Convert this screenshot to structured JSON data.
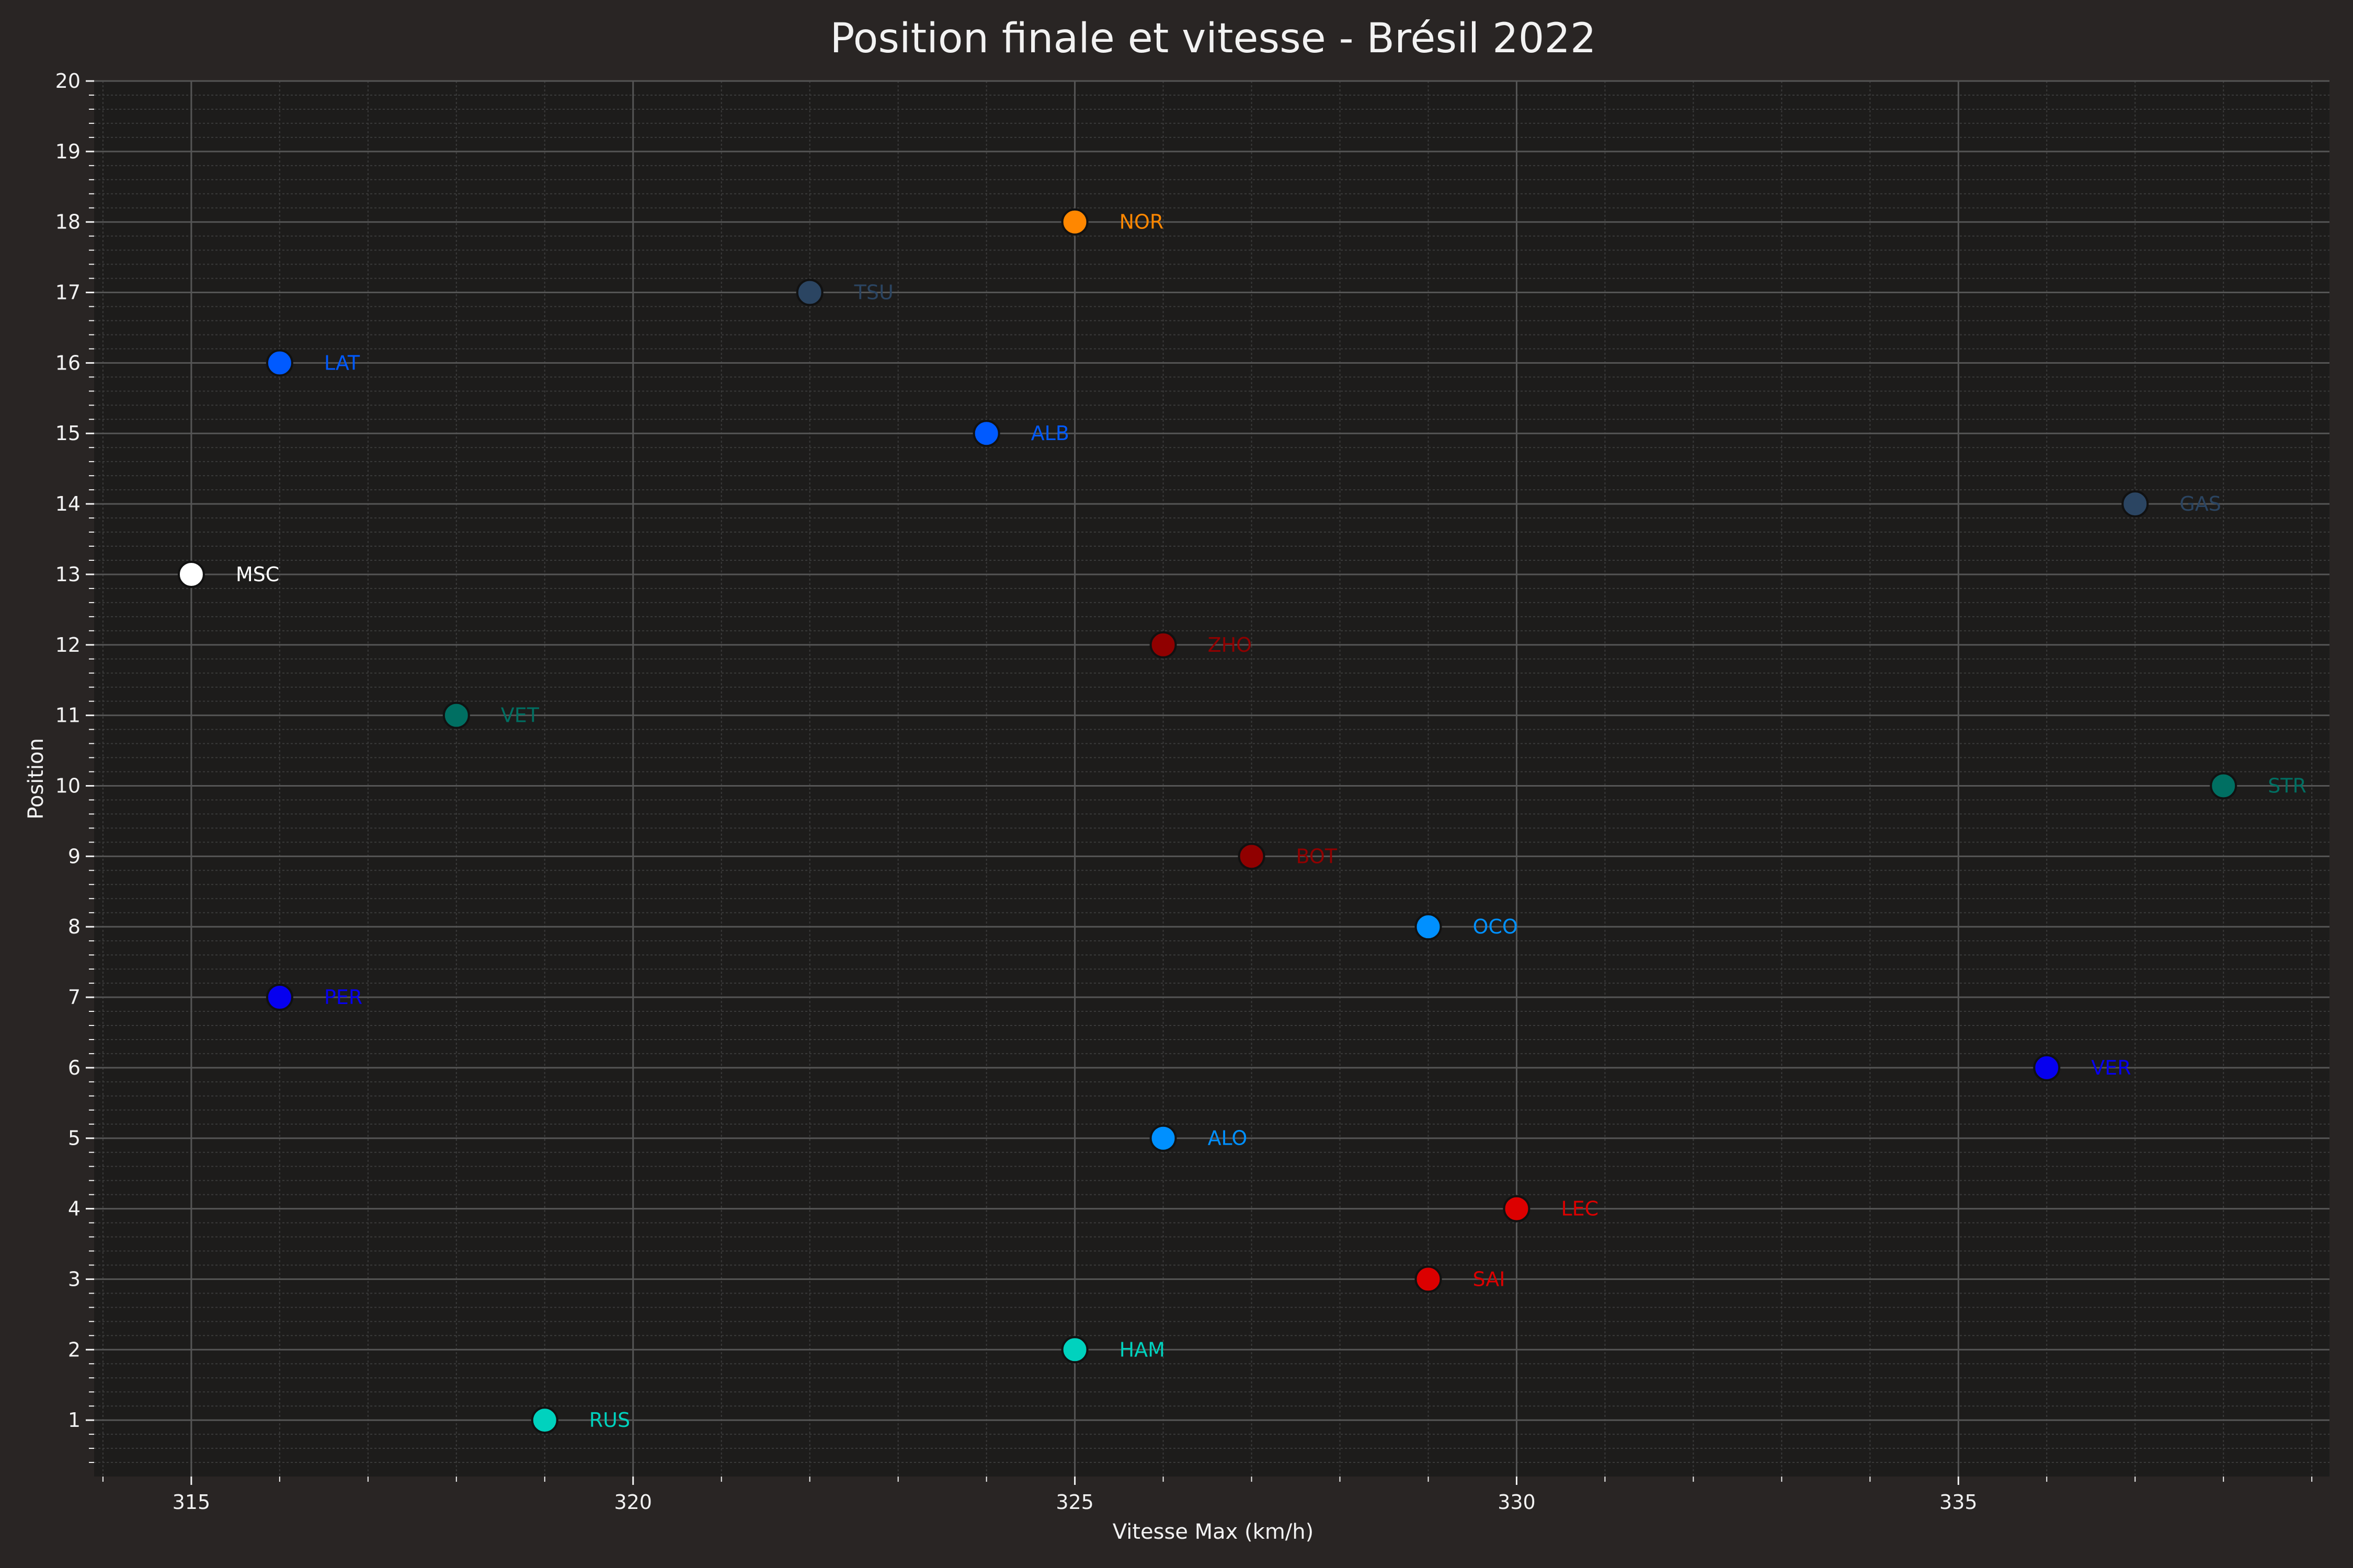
{
  "chart_data": {
    "type": "scatter",
    "title": "Position finale et vitesse - Brésil 2022",
    "xlabel": "Vitesse Max (km/h)",
    "ylabel": "Position",
    "xlim": [
      313.9,
      339.2
    ],
    "ylim": [
      0.2,
      20.0
    ],
    "x_ticks": [
      315,
      320,
      325,
      330,
      335
    ],
    "y_ticks": [
      1,
      2,
      3,
      4,
      5,
      6,
      7,
      8,
      9,
      10,
      11,
      12,
      13,
      14,
      15,
      16,
      17,
      18,
      19,
      20
    ],
    "grid": true,
    "legend": "none",
    "colors": {
      "figure_bg": "#292524",
      "plot_bg": "#1d1c1b",
      "text": "#f2f2f2",
      "grid_major": "#555555",
      "grid_minor": "#3a3a3a"
    },
    "points": [
      {
        "label": "NOR",
        "x": 325,
        "y": 18,
        "color": "#ff8700"
      },
      {
        "label": "TSU",
        "x": 322,
        "y": 17,
        "color": "#2b4562"
      },
      {
        "label": "LAT",
        "x": 316,
        "y": 16,
        "color": "#005aff"
      },
      {
        "label": "ALB",
        "x": 324,
        "y": 15,
        "color": "#005aff"
      },
      {
        "label": "GAS",
        "x": 337,
        "y": 14,
        "color": "#2b4562"
      },
      {
        "label": "MSC",
        "x": 315,
        "y": 13,
        "color": "#ffffff"
      },
      {
        "label": "ZHO",
        "x": 326,
        "y": 12,
        "color": "#900000"
      },
      {
        "label": "VET",
        "x": 318,
        "y": 11,
        "color": "#006f62"
      },
      {
        "label": "STR",
        "x": 338,
        "y": 10,
        "color": "#006f62"
      },
      {
        "label": "BOT",
        "x": 327,
        "y": 9,
        "color": "#900000"
      },
      {
        "label": "OCO",
        "x": 329,
        "y": 8,
        "color": "#0090ff"
      },
      {
        "label": "PER",
        "x": 316,
        "y": 7,
        "color": "#0600ef"
      },
      {
        "label": "VER",
        "x": 336,
        "y": 6,
        "color": "#0600ef"
      },
      {
        "label": "ALO",
        "x": 326,
        "y": 5,
        "color": "#0090ff"
      },
      {
        "label": "LEC",
        "x": 330,
        "y": 4,
        "color": "#dc0000"
      },
      {
        "label": "SAI",
        "x": 329,
        "y": 3,
        "color": "#dc0000"
      },
      {
        "label": "HAM",
        "x": 325,
        "y": 2,
        "color": "#00d2be"
      },
      {
        "label": "RUS",
        "x": 319,
        "y": 1,
        "color": "#00d2be"
      }
    ]
  }
}
